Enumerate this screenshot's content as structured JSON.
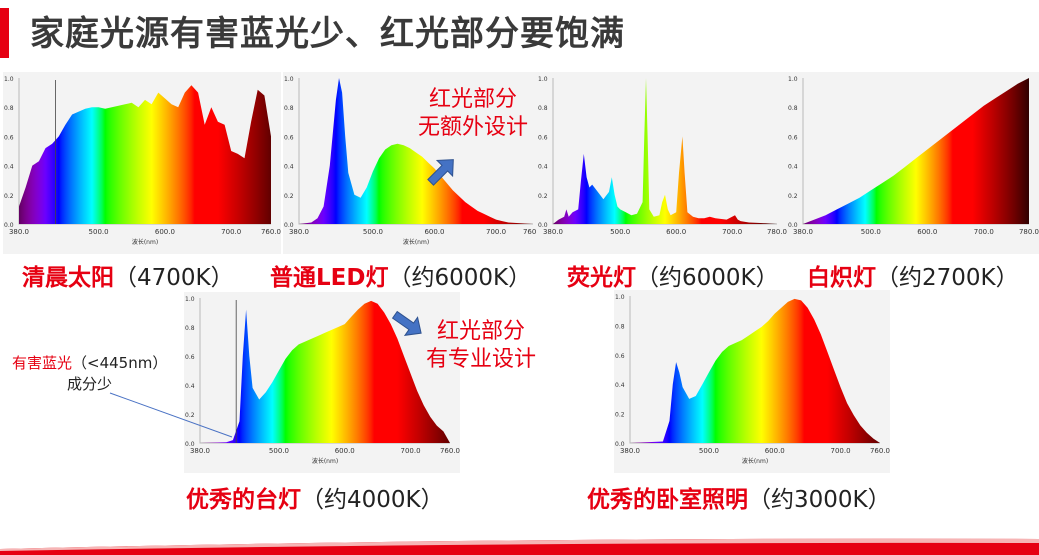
{
  "title": "家庭光源有害蓝光少、红光部分要饱满",
  "colors": {
    "accent": "#e60012",
    "title": "#3a3a3a",
    "note_line": "#4a72c4",
    "arrow": "#4472c4"
  },
  "chart_data": [
    {
      "id": "sunlight",
      "type": "area",
      "caption_red": "清晨太阳",
      "caption_rest": "（4700K）",
      "xlabel": "波长(nm)",
      "xlim": [
        380,
        760
      ],
      "ylim": [
        0,
        1
      ],
      "x_ticks": [
        "380.0",
        "500.0",
        "600.0",
        "700.0",
        "760.0"
      ],
      "y_ticks": [
        "1.0",
        "0.8",
        "0.6",
        "0.4",
        "0.2",
        "0.0"
      ],
      "x": [
        380,
        390,
        400,
        410,
        420,
        430,
        440,
        450,
        460,
        470,
        480,
        490,
        500,
        510,
        520,
        530,
        540,
        550,
        560,
        570,
        580,
        590,
        600,
        610,
        620,
        630,
        640,
        650,
        660,
        670,
        680,
        690,
        700,
        710,
        720,
        730,
        740,
        750,
        760
      ],
      "y": [
        0.12,
        0.25,
        0.4,
        0.43,
        0.52,
        0.55,
        0.6,
        0.68,
        0.75,
        0.77,
        0.79,
        0.8,
        0.8,
        0.79,
        0.8,
        0.81,
        0.82,
        0.83,
        0.8,
        0.85,
        0.82,
        0.9,
        0.86,
        0.82,
        0.8,
        0.9,
        0.95,
        0.9,
        0.68,
        0.8,
        0.7,
        0.68,
        0.5,
        0.48,
        0.45,
        0.7,
        0.92,
        0.88,
        0.6
      ]
    },
    {
      "id": "led",
      "type": "area",
      "caption_red": "普通LED灯",
      "caption_rest": "（约6000K）",
      "xlabel": "波长(nm)",
      "xlim": [
        380,
        760
      ],
      "ylim": [
        0,
        1
      ],
      "x_ticks": [
        "380.0",
        "500.0",
        "600.0",
        "700.0",
        "760.0"
      ],
      "y_ticks": [
        "1.0",
        "0.8",
        "0.6",
        "0.4",
        "0.2",
        "0.0"
      ],
      "x": [
        380,
        400,
        410,
        420,
        430,
        440,
        445,
        450,
        455,
        460,
        470,
        480,
        490,
        500,
        510,
        520,
        530,
        540,
        550,
        560,
        570,
        580,
        590,
        600,
        610,
        620,
        630,
        640,
        650,
        660,
        670,
        680,
        690,
        700,
        710,
        720,
        740,
        760
      ],
      "y": [
        0,
        0.01,
        0.04,
        0.12,
        0.4,
        0.85,
        1.0,
        0.9,
        0.6,
        0.35,
        0.2,
        0.18,
        0.25,
        0.36,
        0.45,
        0.51,
        0.54,
        0.55,
        0.54,
        0.52,
        0.49,
        0.46,
        0.42,
        0.38,
        0.33,
        0.28,
        0.23,
        0.19,
        0.15,
        0.12,
        0.09,
        0.07,
        0.05,
        0.03,
        0.02,
        0.01,
        0.005,
        0
      ]
    },
    {
      "id": "fluorescent",
      "type": "area",
      "caption_red": "荧光灯",
      "caption_rest": "（约6000K）",
      "xlabel": "",
      "xlim": [
        380,
        780
      ],
      "ylim": [
        0,
        1
      ],
      "x_ticks": [
        "380.0",
        "500.0",
        "600.0",
        "700.0",
        "780.0"
      ],
      "y_ticks": [
        "1.0",
        "0.8",
        "0.6",
        "0.4",
        "0.2",
        "0.0"
      ],
      "x": [
        380,
        390,
        400,
        404,
        408,
        415,
        425,
        430,
        435,
        440,
        445,
        450,
        460,
        470,
        480,
        485,
        490,
        495,
        500,
        510,
        520,
        530,
        540,
        543,
        546,
        549,
        552,
        560,
        570,
        575,
        580,
        585,
        590,
        600,
        605,
        611,
        615,
        620,
        630,
        640,
        650,
        660,
        670,
        690,
        705,
        710,
        715,
        730,
        760,
        780
      ],
      "y": [
        0,
        0.03,
        0.05,
        0.1,
        0.05,
        0.08,
        0.1,
        0.3,
        0.48,
        0.32,
        0.25,
        0.27,
        0.22,
        0.17,
        0.22,
        0.32,
        0.2,
        0.12,
        0.1,
        0.08,
        0.06,
        0.07,
        0.15,
        0.6,
        1.0,
        0.6,
        0.1,
        0.05,
        0.06,
        0.15,
        0.2,
        0.1,
        0.06,
        0.08,
        0.35,
        0.6,
        0.35,
        0.08,
        0.05,
        0.04,
        0.04,
        0.05,
        0.04,
        0.03,
        0.06,
        0.03,
        0.02,
        0.01,
        0.005,
        0
      ]
    },
    {
      "id": "incandescent",
      "type": "area",
      "caption_red": "白炽灯",
      "caption_rest": "（约2700K）",
      "xlabel": "",
      "xlim": [
        380,
        780
      ],
      "ylim": [
        0,
        1
      ],
      "x_ticks": [
        "380.0",
        "500.0",
        "600.0",
        "700.0",
        "780.0"
      ],
      "y_ticks": [
        "1.0",
        "0.8",
        "0.6",
        "0.4",
        "0.2",
        "0.0"
      ],
      "x": [
        380,
        400,
        420,
        440,
        460,
        480,
        500,
        520,
        540,
        560,
        580,
        600,
        620,
        640,
        660,
        680,
        700,
        720,
        740,
        760,
        780
      ],
      "y": [
        0,
        0.03,
        0.06,
        0.1,
        0.14,
        0.18,
        0.23,
        0.28,
        0.33,
        0.39,
        0.45,
        0.51,
        0.57,
        0.63,
        0.69,
        0.75,
        0.81,
        0.86,
        0.91,
        0.96,
        1.0
      ]
    },
    {
      "id": "desk",
      "type": "area",
      "caption_red": "优秀的台灯",
      "caption_rest": "（约4000K）",
      "xlabel": "波长(nm)",
      "xlim": [
        380,
        760
      ],
      "ylim": [
        0,
        1
      ],
      "x_ticks": [
        "380.0",
        "500.0",
        "600.0",
        "700.0",
        "760.0"
      ],
      "y_ticks": [
        "1.0",
        "0.8",
        "0.6",
        "0.4",
        "0.2",
        "0.0"
      ],
      "x": [
        380,
        420,
        430,
        440,
        445,
        450,
        455,
        460,
        470,
        480,
        490,
        500,
        510,
        520,
        530,
        540,
        550,
        560,
        570,
        580,
        590,
        600,
        610,
        620,
        630,
        640,
        650,
        660,
        670,
        680,
        690,
        700,
        710,
        720,
        730,
        740,
        750,
        760
      ],
      "y": [
        0,
        0.005,
        0.02,
        0.15,
        0.6,
        0.92,
        0.6,
        0.38,
        0.3,
        0.35,
        0.42,
        0.5,
        0.58,
        0.64,
        0.68,
        0.7,
        0.72,
        0.74,
        0.76,
        0.78,
        0.8,
        0.82,
        0.87,
        0.92,
        0.96,
        0.98,
        0.96,
        0.9,
        0.82,
        0.72,
        0.6,
        0.48,
        0.36,
        0.26,
        0.18,
        0.12,
        0.08,
        0
      ]
    },
    {
      "id": "bedroom",
      "type": "area",
      "caption_red": "优秀的卧室照明",
      "caption_rest": "（约3000K）",
      "xlabel": "波长(nm)",
      "xlim": [
        380,
        760
      ],
      "ylim": [
        0,
        1
      ],
      "x_ticks": [
        "380.0",
        "500.0",
        "600.0",
        "700.0",
        "760.0"
      ],
      "y_ticks": [
        "1.0",
        "0.8",
        "0.6",
        "0.4",
        "0.2",
        "0.0"
      ],
      "x": [
        380,
        430,
        440,
        445,
        450,
        455,
        460,
        470,
        480,
        490,
        500,
        510,
        520,
        530,
        540,
        550,
        560,
        570,
        580,
        590,
        600,
        610,
        620,
        630,
        640,
        650,
        660,
        670,
        680,
        690,
        700,
        710,
        720,
        730,
        740,
        750,
        760
      ],
      "y": [
        0,
        0.01,
        0.15,
        0.4,
        0.55,
        0.48,
        0.38,
        0.3,
        0.32,
        0.4,
        0.48,
        0.56,
        0.62,
        0.66,
        0.68,
        0.7,
        0.73,
        0.76,
        0.79,
        0.83,
        0.88,
        0.92,
        0.96,
        0.98,
        0.97,
        0.92,
        0.84,
        0.74,
        0.62,
        0.5,
        0.38,
        0.27,
        0.19,
        0.12,
        0.07,
        0.03,
        0
      ]
    }
  ],
  "annotations": {
    "led": [
      "红光部分",
      "无额外设计"
    ],
    "desk": [
      "红光部分",
      "有专业设计"
    ]
  },
  "note": {
    "red": "有害蓝光",
    "black": "（<445nm）",
    "line2": "成分少"
  }
}
